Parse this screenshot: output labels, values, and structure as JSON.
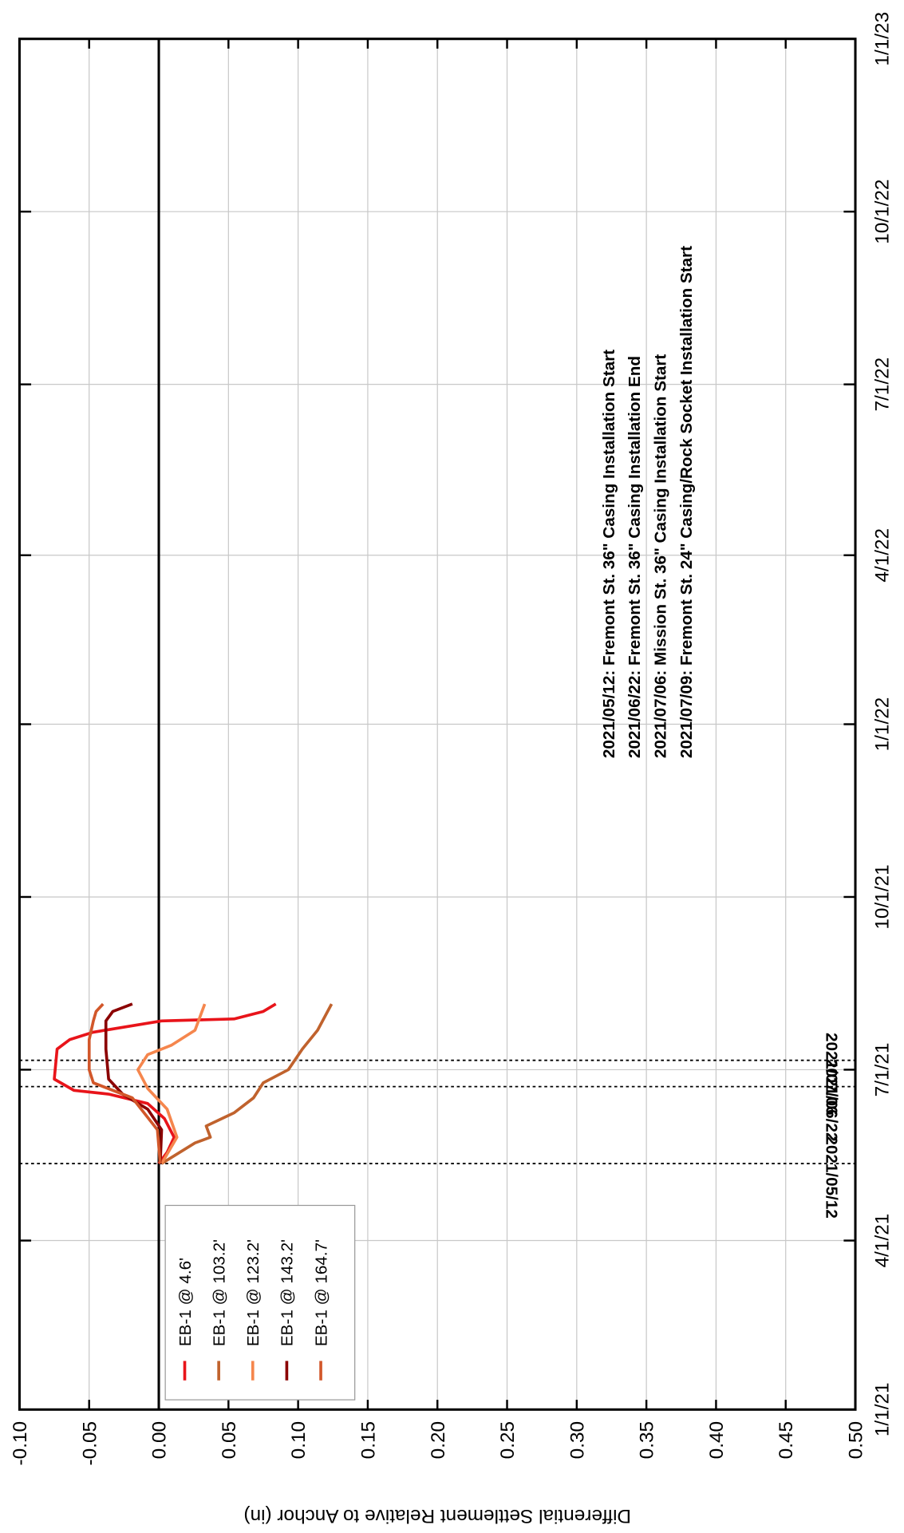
{
  "chart_data": {
    "type": "line",
    "y_label": "Differential Settlement Relative to Anchor (in)",
    "ylim": [
      -0.1,
      0.5
    ],
    "y_inverted": true,
    "yticks": [
      {
        "value": -0.1,
        "label": "-0.10"
      },
      {
        "value": -0.05,
        "label": "-0.05"
      },
      {
        "value": 0,
        "label": "0.00"
      },
      {
        "value": 0.05,
        "label": "0.05"
      },
      {
        "value": 0.1,
        "label": "0.10"
      },
      {
        "value": 0.15,
        "label": "0.15"
      },
      {
        "value": 0.2,
        "label": "0.20"
      },
      {
        "value": 0.25,
        "label": "0.25"
      },
      {
        "value": 0.3,
        "label": "0.30"
      },
      {
        "value": 0.35,
        "label": "0.35"
      },
      {
        "value": 0.4,
        "label": "0.40"
      },
      {
        "value": 0.45,
        "label": "0.45"
      },
      {
        "value": 0.5,
        "label": "0.50"
      }
    ],
    "xlim": [
      "2021-01-01",
      "2023-01-01"
    ],
    "xticks": [
      {
        "value": "2021-01-01",
        "label": "1/1/21"
      },
      {
        "value": "2021-04-01",
        "label": "4/1/21"
      },
      {
        "value": "2021-07-01",
        "label": "7/1/21"
      },
      {
        "value": "2021-10-01",
        "label": "10/1/21"
      },
      {
        "value": "2022-01-01",
        "label": "1/1/22"
      },
      {
        "value": "2022-04-01",
        "label": "4/1/22"
      },
      {
        "value": "2022-07-01",
        "label": "7/1/22"
      },
      {
        "value": "2022-10-01",
        "label": "10/1/22"
      },
      {
        "value": "2023-01-01",
        "label": "1/1/23"
      }
    ],
    "grid": true,
    "legend": "upper left",
    "series": [
      {
        "name": "EB-1 @ 4.6'",
        "color": "#e8141a",
        "x": [
          "2021-05-12",
          "2021-05-18",
          "2021-05-26",
          "2021-06-05",
          "2021-06-13",
          "2021-06-18",
          "2021-06-20",
          "2021-06-26",
          "2021-07-12",
          "2021-07-17",
          "2021-07-21",
          "2021-07-27",
          "2021-07-28",
          "2021-08-01",
          "2021-08-05"
        ],
        "values": [
          0.0,
          0.006,
          0.011,
          0.004,
          -0.008,
          -0.036,
          -0.061,
          -0.075,
          -0.073,
          -0.064,
          -0.047,
          0.002,
          0.054,
          0.075,
          0.084
        ]
      },
      {
        "name": "EB-1 @ 103.2'",
        "color": "#c0622d",
        "x": [
          "2021-05-12",
          "2021-05-23",
          "2021-05-26",
          "2021-06-01",
          "2021-06-08",
          "2021-06-16",
          "2021-06-24",
          "2021-07-01",
          "2021-07-12",
          "2021-07-22",
          "2021-08-05"
        ],
        "values": [
          0.002,
          0.026,
          0.037,
          0.034,
          0.054,
          0.068,
          0.075,
          0.093,
          0.103,
          0.114,
          0.124
        ]
      },
      {
        "name": "EB-1 @ 123.2'",
        "color": "#f5864d",
        "x": [
          "2021-05-12",
          "2021-05-26",
          "2021-06-10",
          "2021-06-21",
          "2021-07-01",
          "2021-07-09",
          "2021-07-14",
          "2021-07-22",
          "2021-07-30",
          "2021-08-05"
        ],
        "values": [
          0.002,
          0.013,
          0.006,
          -0.008,
          -0.015,
          -0.008,
          0.009,
          0.026,
          0.03,
          0.033
        ]
      },
      {
        "name": "EB-1 @ 143.2'",
        "color": "#8b0000",
        "x": [
          "2021-05-12",
          "2021-05-30",
          "2021-06-10",
          "2021-06-18",
          "2021-06-26",
          "2021-07-12",
          "2021-07-27",
          "2021-08-01",
          "2021-08-05"
        ],
        "values": [
          0.001,
          0.002,
          -0.008,
          -0.026,
          -0.036,
          -0.038,
          -0.038,
          -0.033,
          -0.019
        ]
      },
      {
        "name": "EB-1 @ 164.7'",
        "color": "#d2572a",
        "x": [
          "2021-05-12",
          "2021-05-30",
          "2021-06-16",
          "2021-06-24",
          "2021-07-01",
          "2021-07-17",
          "2021-07-27",
          "2021-08-01",
          "2021-08-05"
        ],
        "values": [
          0.001,
          -0.001,
          -0.019,
          -0.047,
          -0.05,
          -0.05,
          -0.047,
          -0.045,
          -0.04
        ]
      }
    ],
    "vlines": [
      {
        "x": "2021-05-12",
        "label": "2021/05/12"
      },
      {
        "x": "2021-06-22",
        "label": "2021/06/22"
      },
      {
        "x": "2021-07-06",
        "label": "2021/07/06"
      }
    ],
    "notes": [
      "2021/05/12: Fremont St. 36\" Casing Installation Start",
      "2021/06/22: Fremont St. 36\" Casing Installation End",
      "2021/07/06: Mission St.  36\" Casing Installation Start",
      "2021/07/09: Fremont St. 24\" Casing/Rock Socket Installation Start"
    ]
  }
}
